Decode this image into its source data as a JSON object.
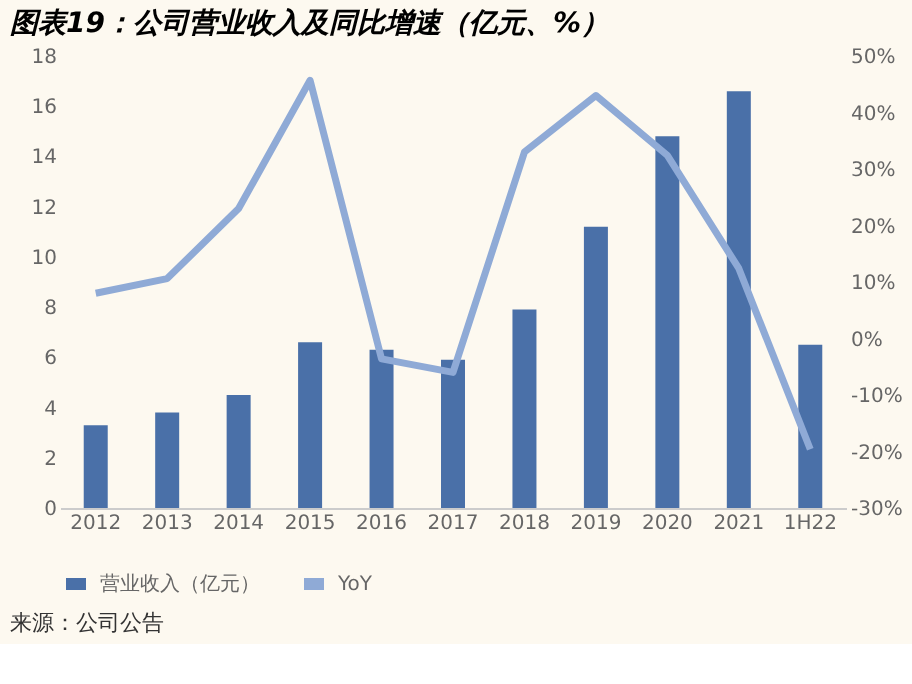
{
  "chart_data": {
    "type": "bar",
    "title": "图表19：公司营业收入及同比增速（亿元、%）",
    "categories": [
      "2012",
      "2013",
      "2014",
      "2015",
      "2016",
      "2017",
      "2018",
      "2019",
      "2020",
      "2021",
      "1H22"
    ],
    "series": [
      {
        "name": "营业收入（亿元）",
        "color": "#4a70a8",
        "values": [
          3.3,
          3.8,
          4.5,
          6.6,
          6.3,
          5.9,
          7.9,
          11.2,
          14.8,
          16.6,
          6.5
        ]
      },
      {
        "name": "YoY",
        "color": "#8faad6",
        "type": "line",
        "axis": "y2",
        "values": [
          8,
          10.6,
          23,
          45.7,
          -3.6,
          -6,
          33,
          43,
          32.4,
          12.4,
          -19.6
        ]
      }
    ],
    "ylim": [
      0,
      18
    ],
    "yticks": [
      0,
      2,
      4,
      6,
      8,
      10,
      12,
      14,
      16,
      18
    ],
    "y2lim": [
      -30,
      50
    ],
    "y2ticks": [
      {
        "value": -30,
        "label": "-30%"
      },
      {
        "value": -20,
        "label": "-20%"
      },
      {
        "value": -10,
        "label": "-10%"
      },
      {
        "value": 0,
        "label": "0%"
      },
      {
        "value": 10,
        "label": "10%"
      },
      {
        "value": 20,
        "label": "20%"
      },
      {
        "value": 30,
        "label": "30%"
      },
      {
        "value": 40,
        "label": "40%"
      },
      {
        "value": 50,
        "label": "50%"
      }
    ],
    "annotations": [
      "来源：公司公告"
    ],
    "legend": "bottom",
    "grid": false,
    "marker": "none",
    "line_style": "solid"
  }
}
